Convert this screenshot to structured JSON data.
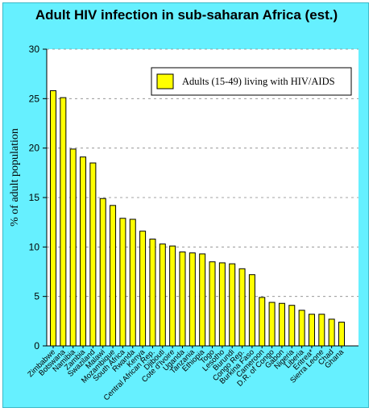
{
  "chart_data": {
    "type": "bar",
    "title": "Adult HIV infection in sub-saharan Africa (est.)",
    "ylabel": "% of adult population",
    "xlabel": "",
    "ylim": [
      0,
      30
    ],
    "yticks": [
      0,
      5,
      10,
      15,
      20,
      25,
      30
    ],
    "grid": "horizontal dashed",
    "legend_position": "top-right",
    "bar_color": "#ffff00",
    "categories": [
      "Zimbabwe",
      "Botswana",
      "Namibia",
      "Zambia",
      "Swaziland",
      "Malawi",
      "Mozambique",
      "South Africa",
      "Rwanda",
      "Kenya",
      "Central African Rep.",
      "Djibouti",
      "Cote d'Ivoire",
      "Uganda",
      "Tanzania",
      "Ethiopia",
      "Togo",
      "Lesotho",
      "Burundi",
      "Congo Rep.",
      "Burkina Faso",
      "Cameroon",
      "D.R. of Congo",
      "Gabon",
      "Nigeria",
      "Liberia",
      "Eritrea*",
      "Sierra Leone",
      "Chad",
      "Ghana"
    ],
    "series": [
      {
        "name": "Adults (15-49) living with HIV/AIDS",
        "values": [
          25.8,
          25.1,
          19.9,
          19.1,
          18.5,
          14.9,
          14.2,
          12.9,
          12.8,
          11.6,
          10.8,
          10.3,
          10.1,
          9.5,
          9.4,
          9.3,
          8.5,
          8.4,
          8.3,
          7.8,
          7.2,
          4.9,
          4.4,
          4.3,
          4.1,
          3.6,
          3.2,
          3.2,
          2.7,
          2.4
        ]
      }
    ]
  }
}
